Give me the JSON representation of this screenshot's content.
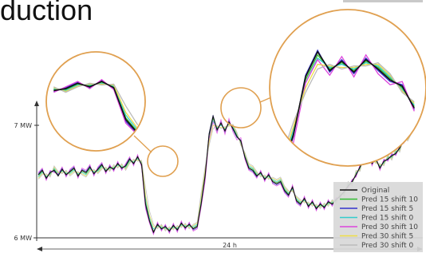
{
  "title_fragment": "duction",
  "chart_data": {
    "type": "line",
    "y_ticks": [
      {
        "value": 7,
        "label": "7 MW"
      },
      {
        "value": 6,
        "label": "6 MW"
      }
    ],
    "ylim": [
      5.95,
      7.35
    ],
    "x_span_label": "24 h",
    "x": [
      0,
      1,
      2,
      3,
      4,
      5,
      6,
      7,
      8,
      9,
      10,
      11,
      12,
      13,
      14,
      15,
      16,
      17,
      18,
      19,
      20,
      21,
      22,
      23,
      24,
      25,
      26,
      27,
      28,
      29,
      30,
      31,
      32,
      33,
      34,
      35,
      36,
      37,
      38,
      39,
      40,
      41,
      42,
      43,
      44,
      45,
      46,
      47,
      48,
      49,
      50,
      51,
      52,
      53,
      54,
      55,
      56,
      57,
      58,
      59,
      60,
      61,
      62,
      63,
      64,
      65,
      66,
      67,
      68,
      69,
      70,
      71,
      72,
      73,
      74,
      75,
      76,
      77,
      78,
      79,
      80,
      81,
      82,
      83,
      84,
      85,
      86,
      87,
      88,
      89,
      90,
      91,
      92,
      93,
      94,
      95,
      96
    ],
    "series": [
      {
        "name": "Original",
        "color": "#111111",
        "values": [
          6.56,
          6.6,
          6.53,
          6.58,
          6.6,
          6.55,
          6.61,
          6.56,
          6.59,
          6.62,
          6.55,
          6.6,
          6.58,
          6.63,
          6.57,
          6.61,
          6.65,
          6.59,
          6.63,
          6.61,
          6.66,
          6.62,
          6.64,
          6.7,
          6.66,
          6.72,
          6.65,
          6.3,
          6.15,
          6.05,
          6.12,
          6.08,
          6.1,
          6.06,
          6.11,
          6.07,
          6.13,
          6.09,
          6.12,
          6.08,
          6.1,
          6.3,
          6.55,
          6.92,
          7.08,
          6.96,
          7.02,
          6.95,
          7.03,
          6.97,
          6.9,
          6.86,
          6.72,
          6.62,
          6.6,
          6.55,
          6.58,
          6.52,
          6.56,
          6.5,
          6.48,
          6.5,
          6.42,
          6.38,
          6.45,
          6.33,
          6.3,
          6.35,
          6.28,
          6.32,
          6.26,
          6.3,
          6.27,
          6.32,
          6.3,
          6.34,
          6.37,
          6.41,
          6.46,
          6.5,
          6.56,
          6.63,
          6.7,
          6.8,
          6.66,
          6.7,
          6.62,
          6.68,
          6.7,
          6.73,
          6.75,
          6.8,
          6.86,
          6.9,
          6.97,
          7.05,
          7.12
        ]
      },
      {
        "name": "Pred 15 shift 10",
        "color": "#33bb33",
        "values": [
          6.55,
          6.59,
          6.54,
          6.57,
          6.61,
          6.56,
          6.6,
          6.57,
          6.58,
          6.61,
          6.56,
          6.59,
          6.57,
          6.62,
          6.58,
          6.6,
          6.64,
          6.6,
          6.62,
          6.62,
          6.65,
          6.63,
          6.63,
          6.69,
          6.67,
          6.71,
          6.66,
          6.32,
          6.16,
          6.06,
          6.11,
          6.09,
          6.09,
          6.07,
          6.1,
          6.08,
          6.12,
          6.1,
          6.11,
          6.09,
          6.11,
          6.31,
          6.56,
          6.9,
          7.06,
          6.97,
          7.01,
          6.96,
          7.02,
          6.98,
          6.91,
          6.85,
          6.73,
          6.63,
          6.61,
          6.56,
          6.57,
          6.53,
          6.55,
          6.51,
          6.49,
          6.51,
          6.43,
          6.39,
          6.44,
          6.34,
          6.31,
          6.34,
          6.29,
          6.31,
          6.27,
          6.29,
          6.28,
          6.31,
          6.31,
          6.33,
          6.38,
          6.4,
          6.47,
          6.49,
          6.57,
          6.62,
          6.71,
          6.78,
          6.67,
          6.69,
          6.63,
          6.67,
          6.71,
          6.72,
          6.76,
          6.79,
          6.87,
          6.89,
          6.96,
          7.04,
          7.1
        ]
      },
      {
        "name": "Pred 15 shift 5",
        "color": "#3333cc",
        "values": [
          6.57,
          6.61,
          6.52,
          6.59,
          6.59,
          6.56,
          6.62,
          6.55,
          6.6,
          6.63,
          6.54,
          6.61,
          6.59,
          6.64,
          6.56,
          6.62,
          6.66,
          6.58,
          6.64,
          6.6,
          6.67,
          6.61,
          6.65,
          6.71,
          6.65,
          6.73,
          6.64,
          6.28,
          6.14,
          6.04,
          6.13,
          6.07,
          6.11,
          6.05,
          6.12,
          6.06,
          6.14,
          6.08,
          6.13,
          6.07,
          6.09,
          6.29,
          6.54,
          6.93,
          7.09,
          6.95,
          7.03,
          6.94,
          7.04,
          6.96,
          6.89,
          6.87,
          6.71,
          6.61,
          6.59,
          6.54,
          6.59,
          6.51,
          6.57,
          6.49,
          6.47,
          6.49,
          6.41,
          6.37,
          6.46,
          6.32,
          6.29,
          6.36,
          6.27,
          6.33,
          6.25,
          6.31,
          6.26,
          6.33,
          6.29,
          6.35,
          6.36,
          6.42,
          6.45,
          6.51,
          6.55,
          6.64,
          6.69,
          6.81,
          6.65,
          6.71,
          6.61,
          6.69,
          6.69,
          6.74,
          6.74,
          6.81,
          6.85,
          6.91,
          6.98,
          7.06,
          7.13
        ]
      },
      {
        "name": "Pred 15 shift 0",
        "color": "#33cccc",
        "values": [
          6.54,
          6.58,
          6.55,
          6.56,
          6.62,
          6.57,
          6.59,
          6.58,
          6.57,
          6.6,
          6.57,
          6.58,
          6.56,
          6.61,
          6.59,
          6.59,
          6.63,
          6.61,
          6.61,
          6.63,
          6.64,
          6.64,
          6.62,
          6.68,
          6.68,
          6.7,
          6.67,
          6.35,
          6.18,
          6.08,
          6.1,
          6.1,
          6.08,
          6.08,
          6.09,
          6.09,
          6.11,
          6.11,
          6.1,
          6.1,
          6.12,
          6.33,
          6.58,
          6.88,
          7.04,
          6.98,
          7.0,
          6.97,
          7.01,
          6.99,
          6.92,
          6.84,
          6.74,
          6.64,
          6.62,
          6.57,
          6.56,
          6.54,
          6.54,
          6.52,
          6.5,
          6.52,
          6.44,
          6.4,
          6.43,
          6.35,
          6.32,
          6.33,
          6.3,
          6.3,
          6.28,
          6.28,
          6.29,
          6.3,
          6.32,
          6.32,
          6.39,
          6.39,
          6.48,
          6.48,
          6.58,
          6.61,
          6.72,
          6.77,
          6.68,
          6.68,
          6.64,
          6.66,
          6.72,
          6.71,
          6.77,
          6.78,
          6.88,
          6.88,
          6.95,
          7.03,
          7.09
        ]
      },
      {
        "name": "Pred 30 shift 10",
        "color": "#dd44dd",
        "values": [
          6.58,
          6.62,
          6.51,
          6.6,
          6.58,
          6.57,
          6.63,
          6.54,
          6.61,
          6.64,
          6.53,
          6.62,
          6.6,
          6.65,
          6.55,
          6.63,
          6.67,
          6.57,
          6.65,
          6.59,
          6.68,
          6.6,
          6.66,
          6.72,
          6.64,
          6.74,
          6.63,
          6.26,
          6.13,
          6.03,
          6.14,
          6.06,
          6.12,
          6.04,
          6.13,
          6.05,
          6.15,
          6.07,
          6.14,
          6.06,
          6.08,
          6.27,
          6.5,
          6.88,
          7.03,
          6.93,
          7.05,
          6.92,
          7.06,
          6.94,
          6.87,
          6.89,
          6.7,
          6.6,
          6.58,
          6.53,
          6.6,
          6.5,
          6.58,
          6.48,
          6.46,
          6.48,
          6.4,
          6.36,
          6.47,
          6.31,
          6.28,
          6.37,
          6.26,
          6.34,
          6.24,
          6.32,
          6.25,
          6.34,
          6.28,
          6.36,
          6.35,
          6.43,
          6.44,
          6.52,
          6.54,
          6.65,
          6.68,
          6.82,
          6.64,
          6.72,
          6.6,
          6.7,
          6.68,
          6.75,
          6.73,
          6.82,
          6.84,
          6.92,
          6.99,
          7.07,
          7.14
        ]
      },
      {
        "name": "Pred 30 shift 5",
        "color": "#eedd44",
        "values": [
          6.53,
          6.57,
          6.56,
          6.55,
          6.63,
          6.58,
          6.58,
          6.59,
          6.56,
          6.59,
          6.58,
          6.57,
          6.55,
          6.6,
          6.6,
          6.58,
          6.62,
          6.62,
          6.6,
          6.64,
          6.63,
          6.65,
          6.61,
          6.67,
          6.69,
          6.69,
          6.68,
          6.38,
          6.2,
          6.1,
          6.09,
          6.11,
          6.07,
          6.09,
          6.08,
          6.1,
          6.1,
          6.12,
          6.09,
          6.11,
          6.13,
          6.36,
          6.6,
          6.85,
          7.0,
          6.99,
          6.98,
          6.98,
          7.0,
          7.0,
          6.93,
          6.83,
          6.75,
          6.65,
          6.63,
          6.58,
          6.55,
          6.55,
          6.53,
          6.53,
          6.51,
          6.53,
          6.45,
          6.41,
          6.42,
          6.36,
          6.33,
          6.32,
          6.31,
          6.29,
          6.29,
          6.27,
          6.3,
          6.29,
          6.33,
          6.31,
          6.4,
          6.38,
          6.49,
          6.47,
          6.59,
          6.6,
          6.73,
          6.76,
          6.69,
          6.67,
          6.65,
          6.65,
          6.73,
          6.7,
          6.78,
          6.77,
          6.89,
          6.87,
          6.94,
          7.02,
          7.08
        ]
      },
      {
        "name": "Pred 30 shift 0",
        "color": "#bbbbbb",
        "values": [
          6.52,
          6.56,
          6.57,
          6.54,
          6.64,
          6.59,
          6.57,
          6.6,
          6.55,
          6.58,
          6.59,
          6.56,
          6.54,
          6.59,
          6.61,
          6.57,
          6.61,
          6.63,
          6.59,
          6.65,
          6.62,
          6.66,
          6.6,
          6.66,
          6.7,
          6.68,
          6.69,
          6.45,
          6.24,
          6.12,
          6.08,
          6.12,
          6.06,
          6.1,
          6.07,
          6.11,
          6.09,
          6.13,
          6.08,
          6.12,
          6.14,
          6.4,
          6.63,
          6.82,
          6.97,
          7.0,
          6.97,
          6.99,
          6.99,
          7.01,
          6.94,
          6.82,
          6.76,
          6.66,
          6.64,
          6.59,
          6.54,
          6.56,
          6.52,
          6.54,
          6.52,
          6.54,
          6.46,
          6.42,
          6.41,
          6.37,
          6.34,
          6.31,
          6.32,
          6.28,
          6.3,
          6.26,
          6.31,
          6.28,
          6.34,
          6.3,
          6.41,
          6.37,
          6.5,
          6.46,
          6.6,
          6.59,
          6.74,
          6.75,
          6.7,
          6.66,
          6.66,
          6.64,
          6.74,
          6.69,
          6.79,
          6.76,
          6.9,
          6.86,
          6.93,
          7.01,
          7.07
        ]
      }
    ],
    "legend_position": "bottom-right",
    "annotations": "three orange circles highlighting regions, two of them magnified in large circular insets"
  },
  "colors": {
    "highlight": "#e0a050",
    "axis": "#333333",
    "legend_bg": "#d8d8d8"
  }
}
